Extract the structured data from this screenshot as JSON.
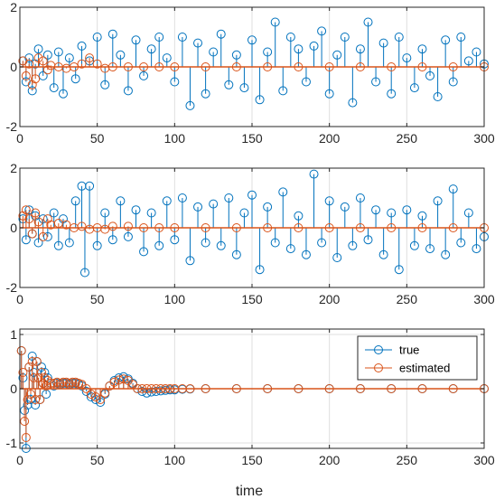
{
  "chart_data": [
    {
      "type": "stem",
      "xlim": [
        0,
        300
      ],
      "ylim": [
        -2,
        2
      ],
      "xticks": [
        0,
        50,
        100,
        150,
        200,
        250,
        300
      ],
      "yticks": [
        -2,
        0,
        2
      ],
      "grid": true,
      "xlabel": "",
      "series": [
        {
          "color": "#0072BD",
          "x": [
            2,
            4,
            6,
            8,
            10,
            12,
            15,
            18,
            22,
            25,
            28,
            32,
            36,
            40,
            45,
            50,
            55,
            60,
            65,
            70,
            75,
            80,
            85,
            90,
            95,
            100,
            105,
            110,
            115,
            120,
            125,
            130,
            135,
            140,
            145,
            150,
            155,
            160,
            165,
            170,
            175,
            180,
            185,
            190,
            195,
            200,
            205,
            210,
            215,
            220,
            225,
            230,
            235,
            240,
            245,
            250,
            255,
            260,
            265,
            270,
            275,
            280,
            285,
            290,
            295,
            300
          ],
          "y": [
            0.2,
            -0.5,
            0.3,
            -0.8,
            0.1,
            0.6,
            -0.3,
            0.4,
            -0.7,
            0.5,
            -0.9,
            0.3,
            -0.4,
            0.7,
            0.2,
            1.0,
            -0.6,
            1.1,
            0.4,
            -0.8,
            0.9,
            -0.3,
            0.6,
            1.0,
            0.3,
            -0.5,
            1.0,
            -1.3,
            0.8,
            -0.9,
            0.5,
            1.1,
            -0.6,
            0.4,
            -0.7,
            0.9,
            -1.1,
            0.5,
            1.5,
            -0.8,
            1.0,
            0.6,
            -0.5,
            0.7,
            1.2,
            -0.9,
            0.4,
            1.0,
            -1.2,
            0.6,
            1.5,
            -0.5,
            0.8,
            -0.9,
            1.0,
            0.3,
            -0.7,
            0.6,
            -0.3,
            -1.0,
            0.9,
            -0.5,
            1.0,
            0.2,
            0.5,
            0.1
          ]
        },
        {
          "color": "#D95319",
          "x": [
            2,
            4,
            6,
            8,
            10,
            12,
            15,
            18,
            20,
            25,
            30,
            35,
            40,
            45,
            50,
            55,
            60,
            70,
            80,
            90,
            100,
            120,
            140,
            160,
            180,
            200,
            220,
            240,
            260,
            280,
            300
          ],
          "y": [
            0.2,
            -0.3,
            0.1,
            -0.6,
            -0.4,
            0.3,
            0.2,
            -0.1,
            0.05,
            0.0,
            -0.05,
            0.0,
            0.1,
            0.3,
            0.1,
            -0.05,
            0.0,
            0.0,
            0.0,
            0.0,
            0.0,
            0.0,
            0.0,
            0.0,
            0.0,
            0.0,
            0.0,
            0.0,
            0.0,
            0.0,
            0.0
          ]
        }
      ]
    },
    {
      "type": "stem",
      "xlim": [
        0,
        300
      ],
      "ylim": [
        -2,
        2
      ],
      "xticks": [
        0,
        50,
        100,
        150,
        200,
        250,
        300
      ],
      "yticks": [
        -2,
        0,
        2
      ],
      "grid": true,
      "xlabel": "",
      "series": [
        {
          "color": "#0072BD",
          "x": [
            2,
            4,
            6,
            8,
            10,
            12,
            15,
            18,
            22,
            25,
            28,
            32,
            36,
            40,
            42,
            45,
            50,
            55,
            60,
            65,
            70,
            75,
            80,
            85,
            90,
            95,
            100,
            105,
            110,
            115,
            120,
            125,
            130,
            135,
            140,
            145,
            150,
            155,
            160,
            165,
            170,
            175,
            180,
            185,
            190,
            195,
            200,
            205,
            210,
            215,
            220,
            225,
            230,
            235,
            240,
            245,
            250,
            255,
            260,
            265,
            270,
            275,
            280,
            285,
            290,
            295,
            300
          ],
          "y": [
            0.3,
            -0.4,
            0.6,
            -0.2,
            0.4,
            -0.5,
            0.3,
            -0.3,
            0.5,
            -0.6,
            0.3,
            -0.5,
            0.9,
            1.4,
            -1.5,
            1.4,
            -0.6,
            0.5,
            -0.4,
            0.9,
            -0.3,
            0.6,
            -0.8,
            0.5,
            -0.6,
            0.9,
            -0.4,
            1.0,
            -1.1,
            0.7,
            -0.5,
            0.8,
            -0.6,
            1.0,
            -0.9,
            0.5,
            1.1,
            -1.4,
            0.7,
            -0.5,
            1.2,
            -0.7,
            0.4,
            -0.9,
            1.8,
            -0.5,
            0.9,
            -1.0,
            0.7,
            -0.6,
            1.0,
            -0.4,
            0.6,
            -0.9,
            0.5,
            -1.4,
            0.6,
            -0.6,
            0.4,
            -0.7,
            0.9,
            -0.9,
            1.3,
            -0.5,
            0.5,
            -0.7,
            -0.3
          ]
        },
        {
          "color": "#D95319",
          "x": [
            2,
            4,
            6,
            8,
            10,
            12,
            15,
            18,
            20,
            25,
            30,
            35,
            40,
            45,
            50,
            55,
            60,
            70,
            80,
            90,
            100,
            120,
            140,
            160,
            180,
            200,
            220,
            240,
            260,
            280,
            300
          ],
          "y": [
            0.4,
            0.6,
            0.3,
            -0.2,
            0.5,
            0.2,
            -0.3,
            0.3,
            0.1,
            0.15,
            0.1,
            0.0,
            0.05,
            -0.05,
            0.0,
            -0.05,
            0.05,
            0.05,
            0.0,
            0.0,
            0.0,
            0.0,
            0.0,
            0.0,
            0.0,
            0.0,
            0.0,
            0.0,
            0.0,
            0.0,
            0.0
          ]
        }
      ]
    },
    {
      "type": "stem",
      "xlim": [
        0,
        300
      ],
      "ylim": [
        -1.1,
        1.1
      ],
      "xticks": [
        0,
        50,
        100,
        150,
        200,
        250,
        300
      ],
      "yticks": [
        -1,
        0,
        1
      ],
      "grid": true,
      "xlabel": "time",
      "legend": {
        "location": "top-right",
        "entries": [
          "true",
          "estimated"
        ]
      },
      "series": [
        {
          "name": "true",
          "color": "#0072BD",
          "x": [
            1,
            2,
            3,
            4,
            5,
            6,
            7,
            8,
            9,
            10,
            11,
            12,
            13,
            14,
            15,
            16,
            17,
            18,
            20,
            22,
            24,
            26,
            28,
            30,
            32,
            34,
            36,
            38,
            40,
            43,
            46,
            49,
            52,
            55,
            58,
            61,
            64,
            67,
            70,
            73,
            76,
            79,
            82,
            85,
            88,
            91,
            94,
            97,
            100,
            105,
            110,
            120,
            140,
            160,
            180,
            200,
            220,
            240,
            260,
            280,
            300
          ],
          "y": [
            0.7,
            0.2,
            -0.4,
            -1.1,
            -0.3,
            0.4,
            -0.2,
            0.6,
            0.3,
            -0.3,
            0.5,
            0.2,
            -0.2,
            0.4,
            0.1,
            0.3,
            -0.1,
            0.2,
            0.1,
            0.05,
            0.1,
            0.08,
            0.1,
            0.1,
            0.08,
            0.1,
            0.1,
            0.08,
            0.05,
            -0.05,
            -0.15,
            -0.2,
            -0.25,
            -0.1,
            0.05,
            0.15,
            0.2,
            0.22,
            0.18,
            0.1,
            0.0,
            -0.05,
            -0.08,
            -0.06,
            -0.05,
            -0.04,
            -0.03,
            -0.02,
            -0.02,
            -0.01,
            -0.005,
            0,
            0,
            0,
            0,
            0,
            0,
            0,
            0,
            0,
            0
          ]
        },
        {
          "name": "estimated",
          "color": "#D95319",
          "x": [
            1,
            2,
            3,
            4,
            5,
            6,
            7,
            8,
            9,
            10,
            11,
            12,
            13,
            14,
            15,
            16,
            17,
            18,
            20,
            22,
            24,
            26,
            28,
            30,
            32,
            34,
            36,
            38,
            40,
            43,
            46,
            49,
            52,
            55,
            58,
            61,
            64,
            67,
            70,
            73,
            76,
            79,
            82,
            85,
            88,
            91,
            94,
            97,
            100,
            105,
            110,
            120,
            140,
            160,
            180,
            200,
            220,
            240,
            260,
            280,
            300
          ],
          "y": [
            0.7,
            0.3,
            -0.6,
            -0.9,
            -0.2,
            0.4,
            -0.1,
            0.5,
            0.2,
            -0.2,
            0.5,
            0.2,
            -0.2,
            0.3,
            0.1,
            0.2,
            0.05,
            0.15,
            0.1,
            0.1,
            0.12,
            0.1,
            0.12,
            0.12,
            0.1,
            0.12,
            0.12,
            0.1,
            0.08,
            0.0,
            -0.1,
            -0.15,
            -0.2,
            -0.08,
            0.05,
            0.12,
            0.16,
            0.18,
            0.15,
            0.08,
            0.0,
            0.0,
            0.0,
            0.0,
            0.0,
            0.0,
            0.0,
            0.0,
            0.0,
            0.0,
            0.0,
            0,
            0,
            0,
            0,
            0,
            0,
            0,
            0,
            0,
            0
          ]
        }
      ]
    }
  ]
}
